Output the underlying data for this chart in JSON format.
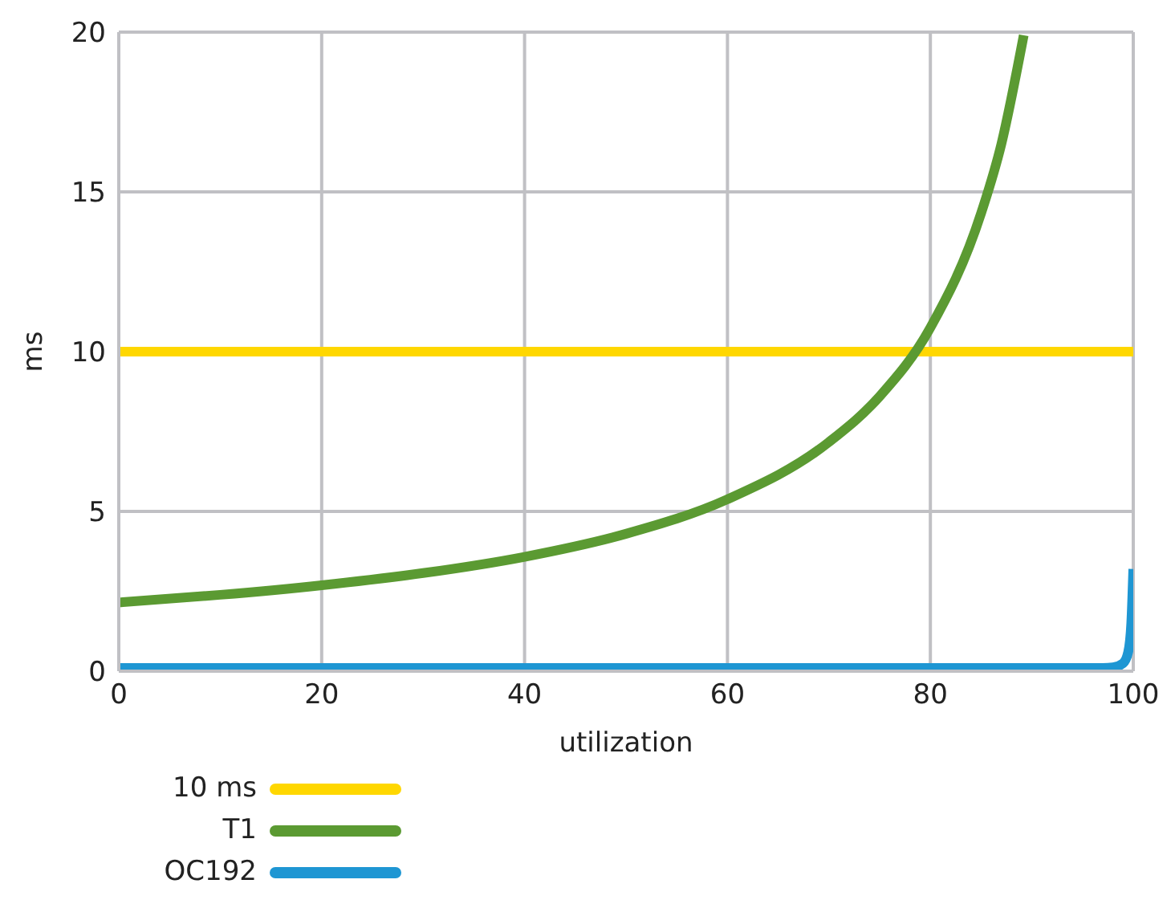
{
  "chart_data": {
    "type": "line",
    "xlabel": "utilization",
    "ylabel": "ms",
    "xlim": [
      0,
      100
    ],
    "ylim": [
      0,
      20
    ],
    "xticks": [
      0,
      20,
      40,
      60,
      80,
      100
    ],
    "yticks": [
      0,
      5,
      10,
      15,
      20
    ],
    "grid": true,
    "legend": "bottom left",
    "marker": "none",
    "line_style": "solid",
    "series": [
      {
        "name": "10 ms",
        "color": "#ffd700",
        "x": [
          0,
          100
        ],
        "values": [
          10,
          10
        ]
      },
      {
        "name": "T1",
        "color": "#5b9a32",
        "x": [
          0,
          10,
          20,
          30,
          40,
          50,
          60,
          70,
          75,
          80,
          85,
          87,
          89.2
        ],
        "values": [
          2.15,
          2.39,
          2.69,
          3.07,
          3.58,
          4.3,
          5.38,
          7.17,
          8.6,
          10.75,
          14.33,
          16.5,
          19.9
        ]
      },
      {
        "name": "OC192",
        "color": "#1e96d3",
        "x": [
          0,
          20,
          40,
          60,
          80,
          97,
          98,
          99,
          99.5,
          99.8,
          100
        ],
        "values": [
          0.1,
          0.1,
          0.1,
          0.1,
          0.1,
          0.1,
          0.12,
          0.25,
          0.6,
          1.5,
          3.2
        ]
      }
    ]
  }
}
